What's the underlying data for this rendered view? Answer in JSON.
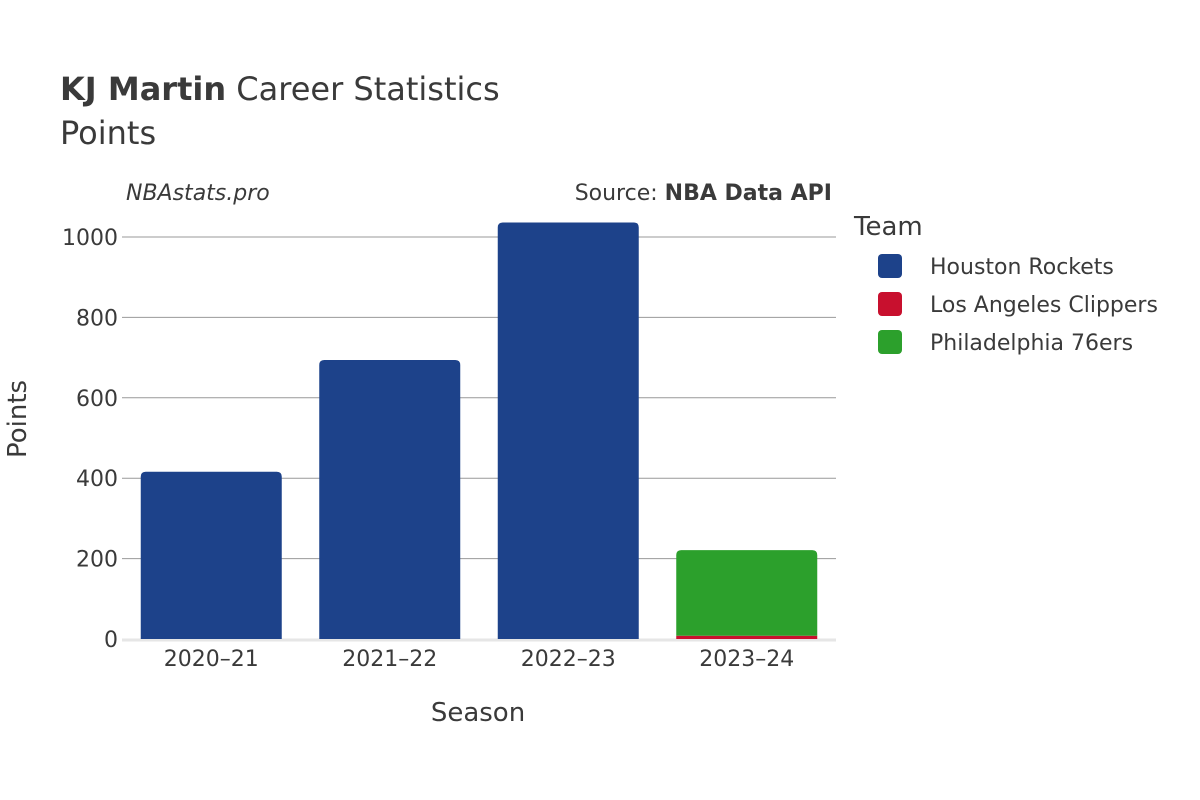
{
  "title": {
    "player": "KJ Martin",
    "rest": " Career Statistics"
  },
  "subtitle": "Points",
  "watermark": "NBAstats.pro",
  "source": {
    "prefix": "Source: ",
    "name": "NBA Data API"
  },
  "legend_title": "Team",
  "chart_data": {
    "type": "bar",
    "stacked": true,
    "categories": [
      "2020–21",
      "2021–22",
      "2022–23",
      "2023–24"
    ],
    "series": [
      {
        "name": "Houston Rockets",
        "color": "#1d428a",
        "values": [
          416,
          694,
          1036,
          0
        ]
      },
      {
        "name": "Los Angeles Clippers",
        "color": "#c8102e",
        "values": [
          0,
          0,
          0,
          8
        ]
      },
      {
        "name": "Philadelphia 76ers",
        "color": "#2ca02c",
        "values": [
          0,
          0,
          0,
          213
        ]
      }
    ],
    "xlabel": "Season",
    "ylabel": "Points",
    "ylim": [
      0,
      1100
    ],
    "yticks": [
      0,
      200,
      400,
      600,
      800,
      1000
    ],
    "grid": true,
    "legend_position": "right"
  }
}
